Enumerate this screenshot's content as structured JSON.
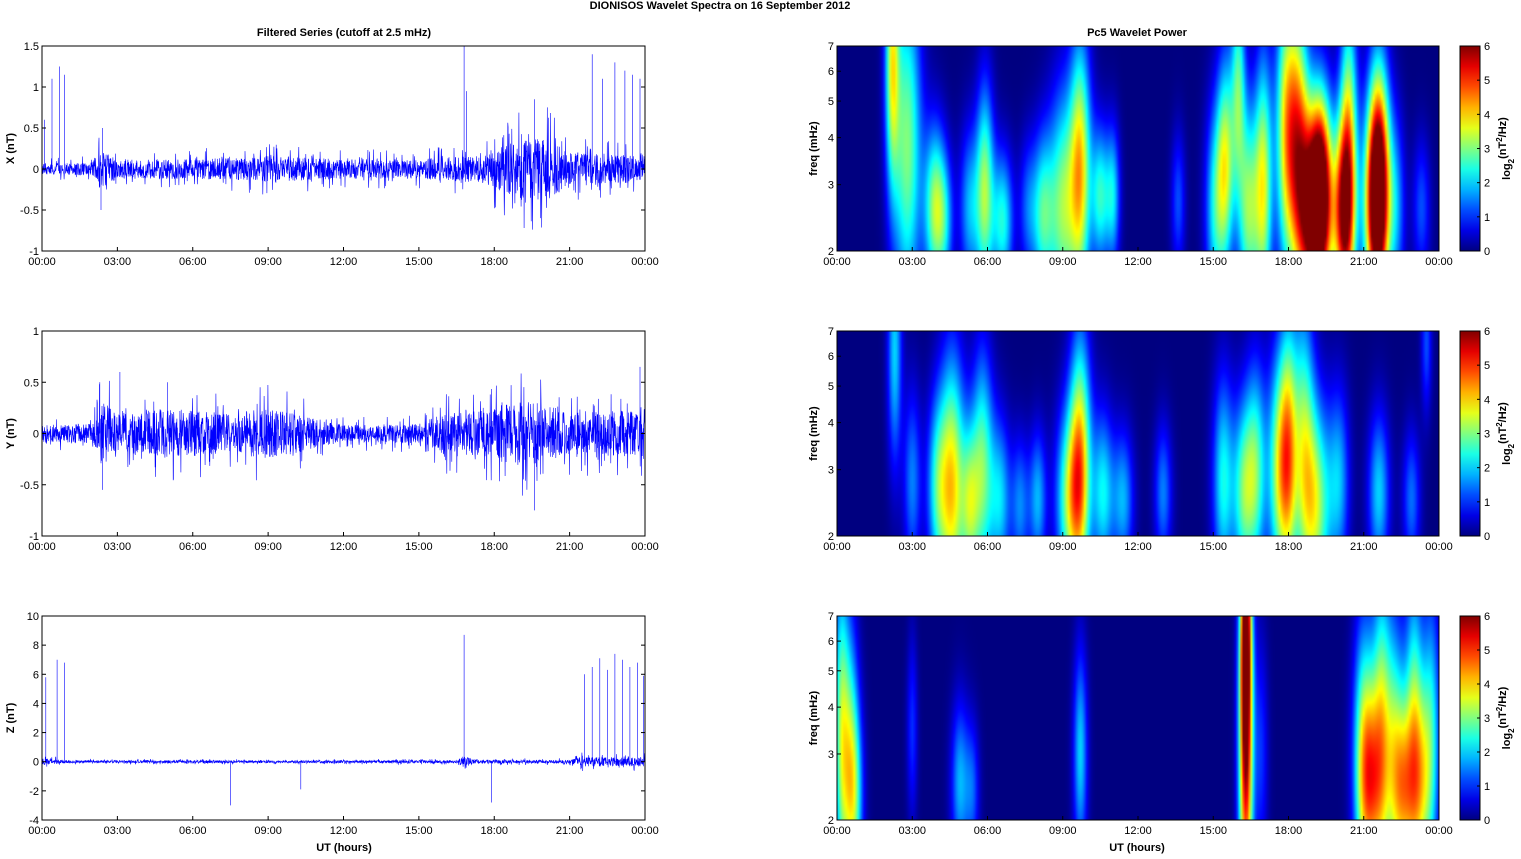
{
  "figure": {
    "title": "DIONISOS Wavelet Spectra on 16 September 2012",
    "left_column_title": "Filtered Series (cutoff at 2.5 mHz)",
    "right_column_title": "Pc5 Wavelet Power",
    "xlabel": "UT (hours)"
  },
  "colors": {
    "series_line": "#0000ff",
    "axes": "#000000",
    "colormap": "jet"
  },
  "chart_data": [
    {
      "type": "line",
      "id": "x-series",
      "ylabel": "X (nT)",
      "x": [
        "00:00",
        "03:00",
        "06:00",
        "09:00",
        "12:00",
        "15:00",
        "18:00",
        "21:00",
        "00:00"
      ],
      "xlim_hours": [
        0,
        24
      ],
      "ylim": [
        -1,
        1.5
      ],
      "yticks": [
        -1,
        -0.5,
        0,
        0.5,
        1,
        1.5
      ],
      "ytick_labels": [
        "-1",
        "-0.5",
        "0",
        "0.5",
        "1",
        "1.5"
      ],
      "series": [
        {
          "noise_envelope": [
            [
              0,
              0.08
            ],
            [
              2,
              0.1
            ],
            [
              2.3,
              0.3
            ],
            [
              3,
              0.15
            ],
            [
              6,
              0.15
            ],
            [
              9,
              0.2
            ],
            [
              12,
              0.15
            ],
            [
              15,
              0.15
            ],
            [
              17,
              0.2
            ],
            [
              18,
              0.3
            ],
            [
              19,
              0.45
            ],
            [
              20,
              0.5
            ],
            [
              21,
              0.25
            ],
            [
              24,
              0.2
            ]
          ],
          "spikes": [
            [
              0.1,
              0.6
            ],
            [
              0.4,
              1.1
            ],
            [
              0.7,
              1.25
            ],
            [
              0.9,
              1.15
            ],
            [
              2.35,
              -0.5
            ],
            [
              2.4,
              0.5
            ],
            [
              16.8,
              1.5
            ],
            [
              16.9,
              0.95
            ],
            [
              19.6,
              0.85
            ],
            [
              21.9,
              1.4
            ],
            [
              22.3,
              1.1
            ],
            [
              22.8,
              1.3
            ],
            [
              23.2,
              1.2
            ],
            [
              23.5,
              1.15
            ],
            [
              23.8,
              1.1
            ]
          ]
        }
      ]
    },
    {
      "type": "line",
      "id": "y-series",
      "ylabel": "Y (nT)",
      "x": [
        "00:00",
        "03:00",
        "06:00",
        "09:00",
        "12:00",
        "15:00",
        "18:00",
        "21:00",
        "00:00"
      ],
      "xlim_hours": [
        0,
        24
      ],
      "ylim": [
        -1,
        1
      ],
      "yticks": [
        -1,
        -0.5,
        0,
        0.5,
        1
      ],
      "ytick_labels": [
        "-1",
        "-0.5",
        "0",
        "0.5",
        "1"
      ],
      "series": [
        {
          "noise_envelope": [
            [
              0,
              0.1
            ],
            [
              2,
              0.12
            ],
            [
              2.4,
              0.4
            ],
            [
              3,
              0.25
            ],
            [
              5,
              0.3
            ],
            [
              7,
              0.25
            ],
            [
              9,
              0.3
            ],
            [
              10,
              0.25
            ],
            [
              12,
              0.1
            ],
            [
              15,
              0.12
            ],
            [
              16,
              0.25
            ],
            [
              18,
              0.3
            ],
            [
              19,
              0.4
            ],
            [
              20,
              0.35
            ],
            [
              21,
              0.25
            ],
            [
              24,
              0.3
            ]
          ],
          "spikes": [
            [
              2.4,
              -0.55
            ],
            [
              2.3,
              0.5
            ],
            [
              3.1,
              0.6
            ],
            [
              5,
              0.5
            ],
            [
              19.6,
              -0.75
            ],
            [
              23.8,
              0.65
            ]
          ]
        }
      ]
    },
    {
      "type": "line",
      "id": "z-series",
      "ylabel": "Z (nT)",
      "x": [
        "00:00",
        "03:00",
        "06:00",
        "09:00",
        "12:00",
        "15:00",
        "18:00",
        "21:00",
        "00:00"
      ],
      "xlim_hours": [
        0,
        24
      ],
      "ylim": [
        -4,
        10
      ],
      "yticks": [
        -4,
        -2,
        0,
        2,
        4,
        6,
        8,
        10
      ],
      "ytick_labels": [
        "-4",
        "-2",
        "0",
        "2",
        "4",
        "6",
        "8",
        "10"
      ],
      "series": [
        {
          "noise_envelope": [
            [
              0,
              0.3
            ],
            [
              1,
              0.12
            ],
            [
              16.5,
              0.12
            ],
            [
              16.8,
              0.5
            ],
            [
              17.2,
              0.15
            ],
            [
              21,
              0.15
            ],
            [
              21.5,
              0.4
            ],
            [
              24,
              0.4
            ]
          ],
          "spikes": [
            [
              0.15,
              5.8
            ],
            [
              0.6,
              7.0
            ],
            [
              0.9,
              6.8
            ],
            [
              7.5,
              -3.0
            ],
            [
              10.3,
              -1.9
            ],
            [
              16.8,
              8.7
            ],
            [
              17.9,
              -2.8
            ],
            [
              21.6,
              6.0
            ],
            [
              21.9,
              6.5
            ],
            [
              22.2,
              7.1
            ],
            [
              22.5,
              6.3
            ],
            [
              22.8,
              7.4
            ],
            [
              23.1,
              7.0
            ],
            [
              23.4,
              6.5
            ],
            [
              23.7,
              6.8
            ],
            [
              23.95,
              5.9
            ]
          ]
        }
      ]
    },
    {
      "type": "heatmap",
      "id": "x-wavelet",
      "ylabel": "freq (mHz)",
      "colorbar_label": "log2(nT2/Hz)",
      "x": [
        "00:00",
        "03:00",
        "06:00",
        "09:00",
        "12:00",
        "15:00",
        "18:00",
        "21:00",
        "00:00"
      ],
      "xlim_hours": [
        0,
        24
      ],
      "ylim": [
        2,
        7
      ],
      "yscale": "log",
      "yticks": [
        2,
        3,
        4,
        5,
        6,
        7
      ],
      "clim": [
        0,
        6
      ],
      "colorbar_ticks": [
        0,
        1,
        2,
        3,
        4,
        5,
        6
      ],
      "blobs": [
        [
          2.2,
          6.5,
          3.2,
          0.2,
          0.55
        ],
        [
          2.8,
          3.8,
          3.0,
          0.4,
          0.7
        ],
        [
          3.9,
          2.6,
          3.0,
          0.3,
          0.35
        ],
        [
          4.3,
          2.4,
          1.5,
          0.25,
          0.3
        ],
        [
          5.3,
          2.6,
          1.8,
          0.3,
          0.35
        ],
        [
          5.9,
          2.9,
          3.0,
          0.25,
          0.45
        ],
        [
          6.6,
          2.4,
          2.4,
          0.3,
          0.3
        ],
        [
          7.6,
          2.6,
          1.2,
          0.25,
          0.3
        ],
        [
          8.2,
          2.5,
          2.4,
          0.3,
          0.35
        ],
        [
          9.0,
          2.6,
          3.0,
          0.4,
          0.5
        ],
        [
          9.7,
          3.3,
          3.8,
          0.3,
          0.55
        ],
        [
          10.5,
          2.8,
          2.4,
          0.25,
          0.3
        ],
        [
          11.0,
          2.8,
          2.0,
          0.2,
          0.3
        ],
        [
          13.6,
          2.7,
          1.2,
          0.2,
          0.3
        ],
        [
          15.1,
          2.6,
          2.2,
          0.3,
          0.45
        ],
        [
          15.5,
          3.5,
          3.0,
          0.25,
          0.45
        ],
        [
          16.0,
          5.5,
          2.5,
          0.2,
          0.45
        ],
        [
          16.4,
          2.6,
          3.0,
          0.3,
          0.45
        ],
        [
          17.0,
          3.0,
          3.4,
          0.25,
          0.55
        ],
        [
          17.9,
          4.2,
          3.5,
          0.3,
          0.6
        ],
        [
          18.4,
          4.0,
          3.5,
          0.3,
          0.6
        ],
        [
          19.0,
          2.5,
          6.0,
          0.45,
          0.45
        ],
        [
          19.3,
          3.0,
          4.0,
          0.3,
          0.4
        ],
        [
          20.2,
          2.5,
          5.0,
          0.3,
          0.4
        ],
        [
          20.4,
          4.0,
          3.2,
          0.25,
          0.6
        ],
        [
          21.5,
          2.6,
          5.2,
          0.35,
          0.45
        ],
        [
          21.6,
          3.3,
          3.8,
          0.3,
          0.5
        ],
        [
          22.3,
          2.6,
          1.5,
          0.25,
          0.4
        ],
        [
          23.3,
          2.6,
          1.2,
          0.25,
          0.3
        ]
      ]
    },
    {
      "type": "heatmap",
      "id": "y-wavelet",
      "ylabel": "freq (mHz)",
      "colorbar_label": "log2(nT2/Hz)",
      "x": [
        "00:00",
        "03:00",
        "06:00",
        "09:00",
        "12:00",
        "15:00",
        "18:00",
        "21:00",
        "00:00"
      ],
      "xlim_hours": [
        0,
        24
      ],
      "ylim": [
        2,
        7
      ],
      "yscale": "log",
      "yticks": [
        2,
        3,
        4,
        5,
        6,
        7
      ],
      "clim": [
        0,
        6
      ],
      "colorbar_ticks": [
        0,
        1,
        2,
        3,
        4,
        5,
        6
      ],
      "blobs": [
        [
          2.3,
          6.2,
          2.0,
          0.2,
          0.5
        ],
        [
          3.0,
          2.8,
          1.5,
          0.25,
          0.4
        ],
        [
          4.0,
          2.7,
          2.2,
          0.3,
          0.4
        ],
        [
          4.6,
          2.7,
          3.8,
          0.35,
          0.55
        ],
        [
          5.3,
          2.4,
          2.5,
          0.25,
          0.35
        ],
        [
          5.8,
          3.0,
          2.8,
          0.3,
          0.5
        ],
        [
          6.5,
          2.5,
          2.0,
          0.3,
          0.35
        ],
        [
          7.3,
          2.4,
          1.5,
          0.25,
          0.3
        ],
        [
          8.0,
          2.5,
          1.8,
          0.25,
          0.3
        ],
        [
          9.3,
          2.5,
          3.0,
          0.4,
          0.4
        ],
        [
          9.7,
          3.2,
          3.5,
          0.3,
          0.55
        ],
        [
          10.6,
          2.6,
          2.2,
          0.3,
          0.35
        ],
        [
          11.4,
          2.5,
          1.8,
          0.3,
          0.3
        ],
        [
          13.0,
          2.6,
          1.5,
          0.25,
          0.3
        ],
        [
          15.4,
          2.8,
          2.3,
          0.3,
          0.45
        ],
        [
          16.2,
          2.6,
          2.5,
          0.3,
          0.4
        ],
        [
          16.7,
          3.0,
          2.6,
          0.3,
          0.45
        ],
        [
          17.6,
          3.0,
          3.0,
          0.3,
          0.5
        ],
        [
          18.0,
          3.3,
          3.5,
          0.25,
          0.55
        ],
        [
          18.6,
          3.6,
          2.6,
          0.3,
          0.6
        ],
        [
          19.1,
          2.4,
          3.2,
          0.4,
          0.45
        ],
        [
          20.0,
          2.8,
          1.8,
          0.3,
          0.4
        ],
        [
          21.6,
          2.6,
          2.0,
          0.3,
          0.35
        ],
        [
          22.9,
          2.5,
          1.4,
          0.25,
          0.3
        ],
        [
          23.5,
          6.5,
          1.2,
          0.15,
          0.3
        ]
      ]
    },
    {
      "type": "heatmap",
      "id": "z-wavelet",
      "ylabel": "freq (mHz)",
      "colorbar_label": "log2(nT2/Hz)",
      "x": [
        "00:00",
        "03:00",
        "06:00",
        "09:00",
        "12:00",
        "15:00",
        "18:00",
        "21:00",
        "00:00"
      ],
      "xlim_hours": [
        0,
        24
      ],
      "ylim": [
        2,
        7
      ],
      "yscale": "log",
      "yticks": [
        2,
        3,
        4,
        5,
        6,
        7
      ],
      "clim": [
        0,
        6
      ],
      "colorbar_ticks": [
        0,
        1,
        2,
        3,
        4,
        5,
        6
      ],
      "blobs": [
        [
          0.15,
          3.5,
          2.5,
          0.2,
          0.7
        ],
        [
          0.5,
          3.0,
          2.4,
          0.25,
          0.6
        ],
        [
          0.7,
          2.3,
          2.0,
          0.25,
          0.4
        ],
        [
          3.0,
          3.5,
          1.0,
          0.15,
          0.4
        ],
        [
          4.9,
          2.5,
          1.8,
          0.25,
          0.35
        ],
        [
          5.4,
          2.4,
          1.2,
          0.2,
          0.3
        ],
        [
          9.7,
          3.0,
          2.0,
          0.2,
          0.45
        ],
        [
          16.3,
          3.0,
          5.2,
          0.2,
          0.8
        ],
        [
          16.3,
          6.5,
          4.5,
          0.15,
          0.5
        ],
        [
          16.9,
          3.0,
          1.0,
          0.2,
          0.5
        ],
        [
          21.0,
          3.0,
          2.5,
          0.3,
          0.6
        ],
        [
          21.3,
          2.5,
          3.2,
          0.35,
          0.45
        ],
        [
          21.7,
          3.5,
          2.5,
          0.25,
          0.7
        ],
        [
          22.2,
          3.0,
          2.6,
          0.3,
          0.6
        ],
        [
          22.6,
          2.4,
          3.0,
          0.3,
          0.4
        ],
        [
          23.0,
          3.5,
          2.4,
          0.25,
          0.7
        ],
        [
          23.3,
          2.5,
          2.6,
          0.3,
          0.45
        ],
        [
          23.7,
          3.5,
          2.0,
          0.25,
          0.6
        ]
      ]
    }
  ]
}
